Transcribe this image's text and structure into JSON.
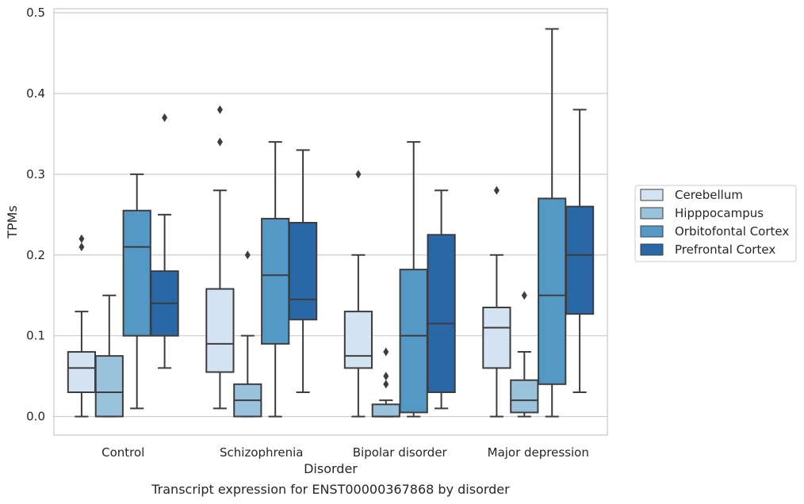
{
  "chart_data": {
    "type": "box",
    "caption": "Transcript expression for ENST00000367868 by disorder",
    "xlabel": "Disorder",
    "ylabel": "TPMs",
    "ylim": [
      -0.023,
      0.505
    ],
    "yticks": [
      0.0,
      0.1,
      0.2,
      0.3,
      0.4,
      0.5
    ],
    "ytick_labels": [
      "0.0",
      "0.1",
      "0.2",
      "0.3",
      "0.4",
      "0.5"
    ],
    "grid": "horizontal",
    "legend_position": "right",
    "categories": [
      "Control",
      "Schizophrenia",
      "Bipolar disorder",
      "Major depression"
    ],
    "series": [
      {
        "name": "Cerebellum",
        "color": "#d4e3f2",
        "boxes": [
          {
            "whislo": 0.0,
            "q1": 0.03,
            "med": 0.06,
            "q3": 0.08,
            "whishi": 0.13,
            "fliers": [
              0.21,
              0.22
            ]
          },
          {
            "whislo": 0.01,
            "q1": 0.055,
            "med": 0.09,
            "q3": 0.158,
            "whishi": 0.28,
            "fliers": [
              0.34,
              0.38
            ]
          },
          {
            "whislo": 0.0,
            "q1": 0.06,
            "med": 0.075,
            "q3": 0.13,
            "whishi": 0.2,
            "fliers": [
              0.3
            ]
          },
          {
            "whislo": 0.0,
            "q1": 0.06,
            "med": 0.11,
            "q3": 0.135,
            "whishi": 0.2,
            "fliers": [
              0.28
            ]
          }
        ]
      },
      {
        "name": "Hipppocampus",
        "color": "#9bc2dc",
        "boxes": [
          {
            "whislo": 0.0,
            "q1": 0.0,
            "med": 0.03,
            "q3": 0.075,
            "whishi": 0.15,
            "fliers": []
          },
          {
            "whislo": 0.0,
            "q1": 0.0,
            "med": 0.02,
            "q3": 0.04,
            "whishi": 0.1,
            "fliers": [
              0.2
            ]
          },
          {
            "whislo": 0.0,
            "q1": 0.0,
            "med": 0.0,
            "q3": 0.015,
            "whishi": 0.02,
            "fliers": [
              0.04,
              0.05,
              0.08
            ]
          },
          {
            "whislo": 0.0,
            "q1": 0.005,
            "med": 0.02,
            "q3": 0.045,
            "whishi": 0.08,
            "fliers": [
              0.15
            ]
          }
        ]
      },
      {
        "name": "Orbitofontal Cortex",
        "color": "#5499c6",
        "boxes": [
          {
            "whislo": 0.01,
            "q1": 0.1,
            "med": 0.21,
            "q3": 0.255,
            "whishi": 0.3,
            "fliers": []
          },
          {
            "whislo": 0.0,
            "q1": 0.09,
            "med": 0.175,
            "q3": 0.245,
            "whishi": 0.34,
            "fliers": []
          },
          {
            "whislo": 0.0,
            "q1": 0.005,
            "med": 0.1,
            "q3": 0.182,
            "whishi": 0.34,
            "fliers": []
          },
          {
            "whislo": 0.0,
            "q1": 0.04,
            "med": 0.15,
            "q3": 0.27,
            "whishi": 0.48,
            "fliers": []
          }
        ]
      },
      {
        "name": "Prefrontal Cortex",
        "color": "#2967a6",
        "boxes": [
          {
            "whislo": 0.06,
            "q1": 0.1,
            "med": 0.14,
            "q3": 0.18,
            "whishi": 0.25,
            "fliers": [
              0.37
            ]
          },
          {
            "whislo": 0.03,
            "q1": 0.12,
            "med": 0.145,
            "q3": 0.24,
            "whishi": 0.33,
            "fliers": []
          },
          {
            "whislo": 0.01,
            "q1": 0.03,
            "med": 0.115,
            "q3": 0.225,
            "whishi": 0.28,
            "fliers": []
          },
          {
            "whislo": 0.03,
            "q1": 0.127,
            "med": 0.2,
            "q3": 0.26,
            "whishi": 0.38,
            "fliers": []
          }
        ]
      }
    ]
  }
}
